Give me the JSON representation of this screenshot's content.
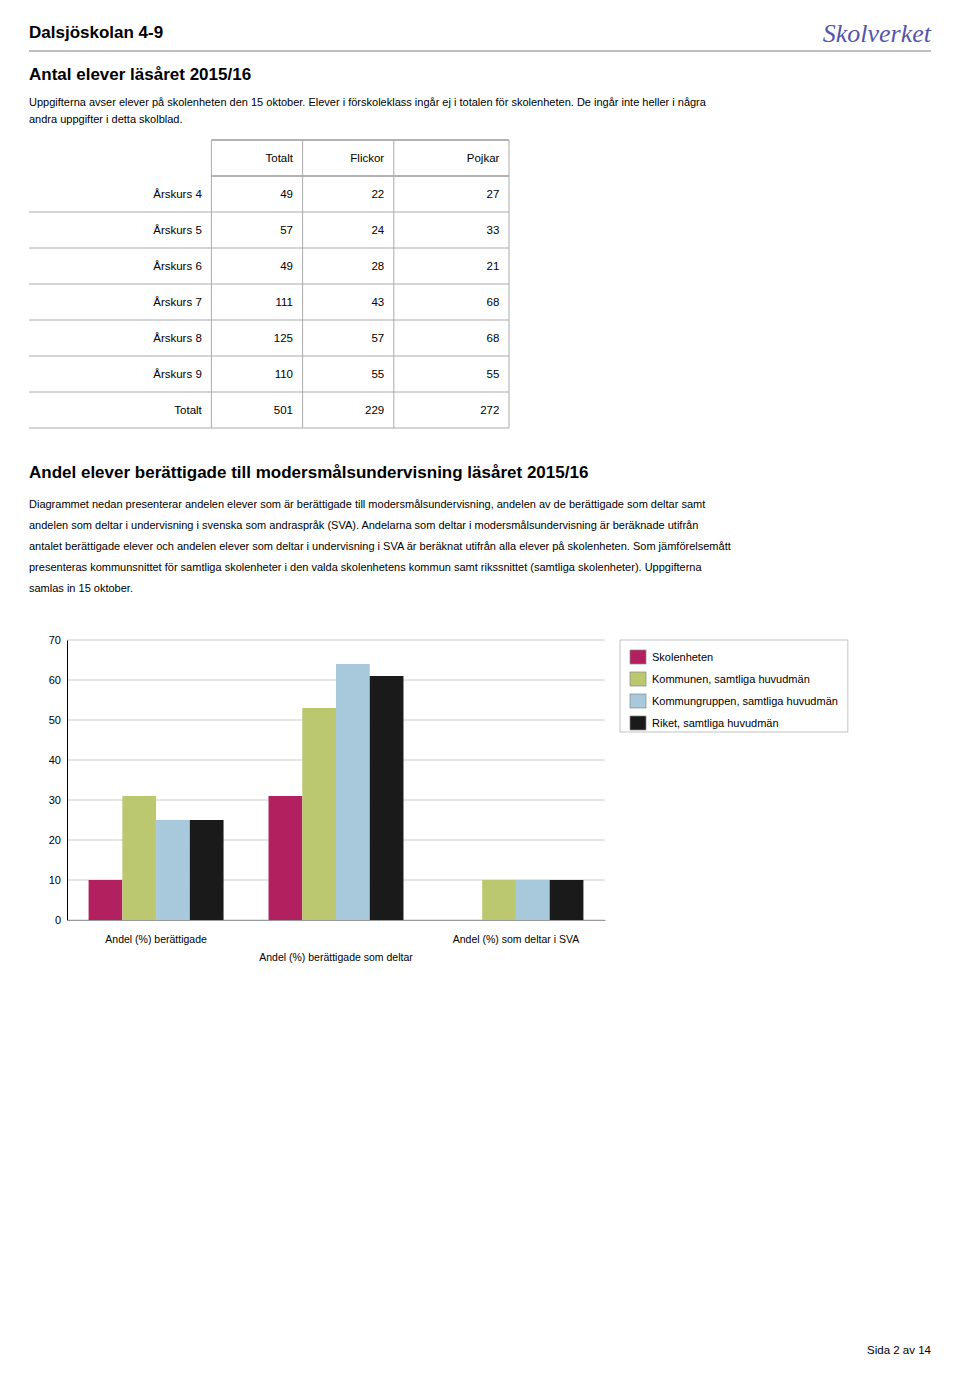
{
  "page": {
    "title": "Dalsjöskolan 4-9",
    "logo_text": "Skolverket",
    "section1_title": "Antal elever läsåret 2015/16",
    "section1_desc": [
      "Uppgifterna avser elever på skolenheten den 15 oktober. Elever i förskoleklass ingår ej i totalen för skolenheten. De ingår inte heller i några",
      "andra uppgifter i detta skolblad."
    ],
    "table": {
      "headers": [
        "Totalt",
        "Flickor",
        "Pojkar"
      ],
      "rows": [
        [
          "Årskurs 4",
          "49",
          "22",
          "27"
        ],
        [
          "Årskurs 5",
          "57",
          "24",
          "33"
        ],
        [
          "Årskurs 6",
          "49",
          "28",
          "21"
        ],
        [
          "Årskurs 7",
          "111",
          "43",
          "68"
        ],
        [
          "Årskurs 8",
          "125",
          "57",
          "68"
        ],
        [
          "Årskurs 9",
          "110",
          "55",
          "55"
        ],
        [
          "Totalt",
          "501",
          "229",
          "272"
        ]
      ]
    },
    "section2_desc": [
      "Diagrammet nedan presenterar andelen elever som är berättigade till modersmålsundervisning, andelen av de berättigade som deltar samt",
      "andelen som deltar i undervisning i svenska som andraspråk (SVA). Andelarna som deltar i modersmålsundervisning är beräknade utifrån",
      "antalet berättigade elever och andelen elever som deltar i undervisning i SVA är beräknat utifrån alla elever på skolenheten. Som jämförelsemått",
      "presenteras kommunsnittet för samtliga skolenheter i den valda skolenhetens kommun samt rikssnittet (samtliga skolenheter). Uppgifterna",
      "samlas in 15 oktober."
    ],
    "page_number": "Sida 2 av 14"
  },
  "chart_data": {
    "type": "bar",
    "title": "Andel elever berättigade till modersmålsundervisning läsåret 2015/16",
    "categories": [
      "Andel (%) berättigade",
      "Andel (%) berättigade som deltar",
      "Andel (%) som deltar i SVA"
    ],
    "series": [
      {
        "name": "Skolenheten",
        "color": "#B22060",
        "values": [
          10,
          31,
          0
        ]
      },
      {
        "name": "Kommunen, samtliga huvudmän",
        "color": "#BCC870",
        "values": [
          31,
          53,
          10
        ]
      },
      {
        "name": "Kommungruppen, samtliga huvudmän",
        "color": "#A8C8DC",
        "values": [
          25,
          64,
          10
        ]
      },
      {
        "name": "Riket, samtliga huvudmän",
        "color": "#1A1A1A",
        "values": [
          25,
          61,
          10
        ]
      }
    ],
    "ylim": [
      0,
      70
    ],
    "yticks": [
      0,
      10,
      20,
      30,
      40,
      50,
      60,
      70
    ],
    "grid": true,
    "legend": "right"
  }
}
